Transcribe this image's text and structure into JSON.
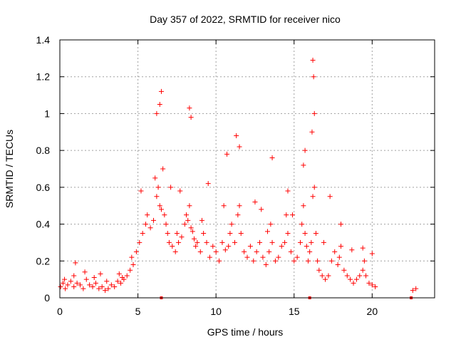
{
  "chart_data": {
    "type": "scatter",
    "title": "Day 357 of 2022, SRMTID for receiver nico",
    "xlabel": "GPS time / hours",
    "ylabel": "SRMTID / TECUs",
    "xlim": [
      0,
      24
    ],
    "ylim": [
      0,
      1.4
    ],
    "xticks": [
      0,
      5,
      10,
      15,
      20
    ],
    "yticks": [
      0,
      0.2,
      0.4,
      0.6,
      0.8,
      1,
      1.2,
      1.4
    ],
    "xtick_labels": [
      "0",
      "5",
      "10",
      "15",
      "20"
    ],
    "ytick_labels": [
      "0",
      "0.2",
      "0.4",
      "0.6",
      "0.8",
      "1",
      "1.2",
      "1.4"
    ],
    "grid": true,
    "marker": "+",
    "color": "#ff0000",
    "series": [
      {
        "name": "SRMTID",
        "x": [
          0.05,
          0.2,
          0.35,
          0.5,
          0.7,
          0.9,
          1.1,
          1.3,
          1.5,
          1.7,
          1.9,
          2.1,
          2.3,
          2.5,
          2.7,
          2.9,
          3.1,
          3.3,
          3.5,
          3.7,
          3.9,
          4.1,
          4.3,
          4.5,
          4.7,
          0.9,
          0.3,
          1.6,
          2.2,
          3.0,
          3.8,
          4.6,
          4.9,
          5.1,
          5.3,
          5.5,
          5.6,
          5.8,
          6.0,
          6.2,
          6.3,
          6.4,
          6.5,
          6.6,
          6.7,
          6.8,
          6.9,
          7.0,
          7.2,
          7.4,
          7.5,
          7.6,
          7.8,
          8.0,
          8.1,
          8.2,
          8.3,
          8.4,
          8.5,
          8.6,
          8.7,
          8.8,
          9.0,
          9.2,
          9.4,
          9.6,
          9.8,
          10.0,
          10.2,
          10.4,
          10.6,
          10.8,
          10.9,
          11.0,
          11.2,
          11.4,
          11.5,
          11.6,
          11.8,
          12.0,
          12.2,
          12.4,
          12.6,
          12.8,
          13.0,
          13.2,
          13.4,
          13.5,
          13.6,
          13.8,
          14.0,
          14.2,
          14.4,
          14.5,
          14.6,
          14.8,
          15.0,
          15.2,
          15.4,
          15.5,
          15.6,
          15.7,
          15.8,
          15.9,
          16.0,
          16.1,
          16.2,
          16.3,
          16.4,
          16.5,
          16.6,
          16.8,
          17.0,
          17.2,
          17.4,
          17.6,
          17.8,
          17.9,
          18.0,
          18.2,
          18.4,
          18.6,
          18.8,
          19.0,
          19.2,
          19.4,
          19.5,
          19.6,
          19.8,
          20.0,
          20.2,
          22.6,
          22.8,
          6.2,
          6.4,
          6.5,
          8.3,
          8.4,
          11.3,
          11.5,
          10.7,
          13.6,
          15.7,
          16.2,
          16.25,
          16.3,
          16.15,
          15.6,
          14.6,
          12.5,
          18.0,
          19.4,
          20.0,
          2.6,
          1.0,
          4.0,
          5.2,
          7.1,
          9.5,
          12.9,
          17.3,
          6.1,
          7.7,
          9.1,
          10.5,
          13.3,
          14.9,
          16.9,
          18.7
        ],
        "y": [
          0.06,
          0.08,
          0.05,
          0.07,
          0.09,
          0.06,
          0.08,
          0.07,
          0.05,
          0.1,
          0.07,
          0.06,
          0.08,
          0.05,
          0.06,
          0.04,
          0.05,
          0.07,
          0.06,
          0.09,
          0.08,
          0.1,
          0.12,
          0.15,
          0.18,
          0.12,
          0.1,
          0.14,
          0.11,
          0.09,
          0.13,
          0.22,
          0.25,
          0.3,
          0.35,
          0.4,
          0.45,
          0.38,
          0.42,
          0.55,
          0.6,
          0.5,
          0.48,
          0.7,
          0.45,
          0.4,
          0.35,
          0.3,
          0.28,
          0.25,
          0.35,
          0.3,
          0.33,
          0.4,
          0.45,
          0.42,
          0.5,
          0.38,
          0.36,
          0.32,
          0.28,
          0.3,
          0.25,
          0.35,
          0.3,
          0.22,
          0.28,
          0.25,
          0.2,
          0.3,
          0.26,
          0.28,
          0.35,
          0.4,
          0.3,
          0.45,
          0.5,
          0.35,
          0.25,
          0.22,
          0.28,
          0.2,
          0.25,
          0.3,
          0.22,
          0.18,
          0.25,
          0.4,
          0.3,
          0.2,
          0.22,
          0.28,
          0.3,
          0.45,
          0.35,
          0.25,
          0.2,
          0.22,
          0.3,
          0.4,
          0.5,
          0.35,
          0.28,
          0.2,
          0.25,
          0.3,
          0.55,
          0.6,
          0.35,
          0.2,
          0.15,
          0.12,
          0.1,
          0.12,
          0.2,
          0.25,
          0.18,
          0.22,
          0.28,
          0.15,
          0.12,
          0.1,
          0.08,
          0.1,
          0.12,
          0.15,
          0.2,
          0.12,
          0.08,
          0.07,
          0.06,
          0.04,
          0.05,
          1.0,
          1.05,
          1.12,
          1.03,
          0.98,
          0.88,
          0.82,
          0.78,
          0.76,
          0.8,
          1.29,
          1.2,
          1.0,
          0.9,
          0.72,
          0.58,
          0.52,
          0.4,
          0.27,
          0.24,
          0.13,
          0.19,
          0.11,
          0.58,
          0.6,
          0.62,
          0.48,
          0.55,
          0.65,
          0.58,
          0.42,
          0.5,
          0.36,
          0.45,
          0.3,
          0.26
        ],
        "low_marks_x": [
          6.5,
          16.0,
          22.5
        ],
        "low_marks_y": [
          0,
          0,
          0
        ]
      }
    ]
  }
}
